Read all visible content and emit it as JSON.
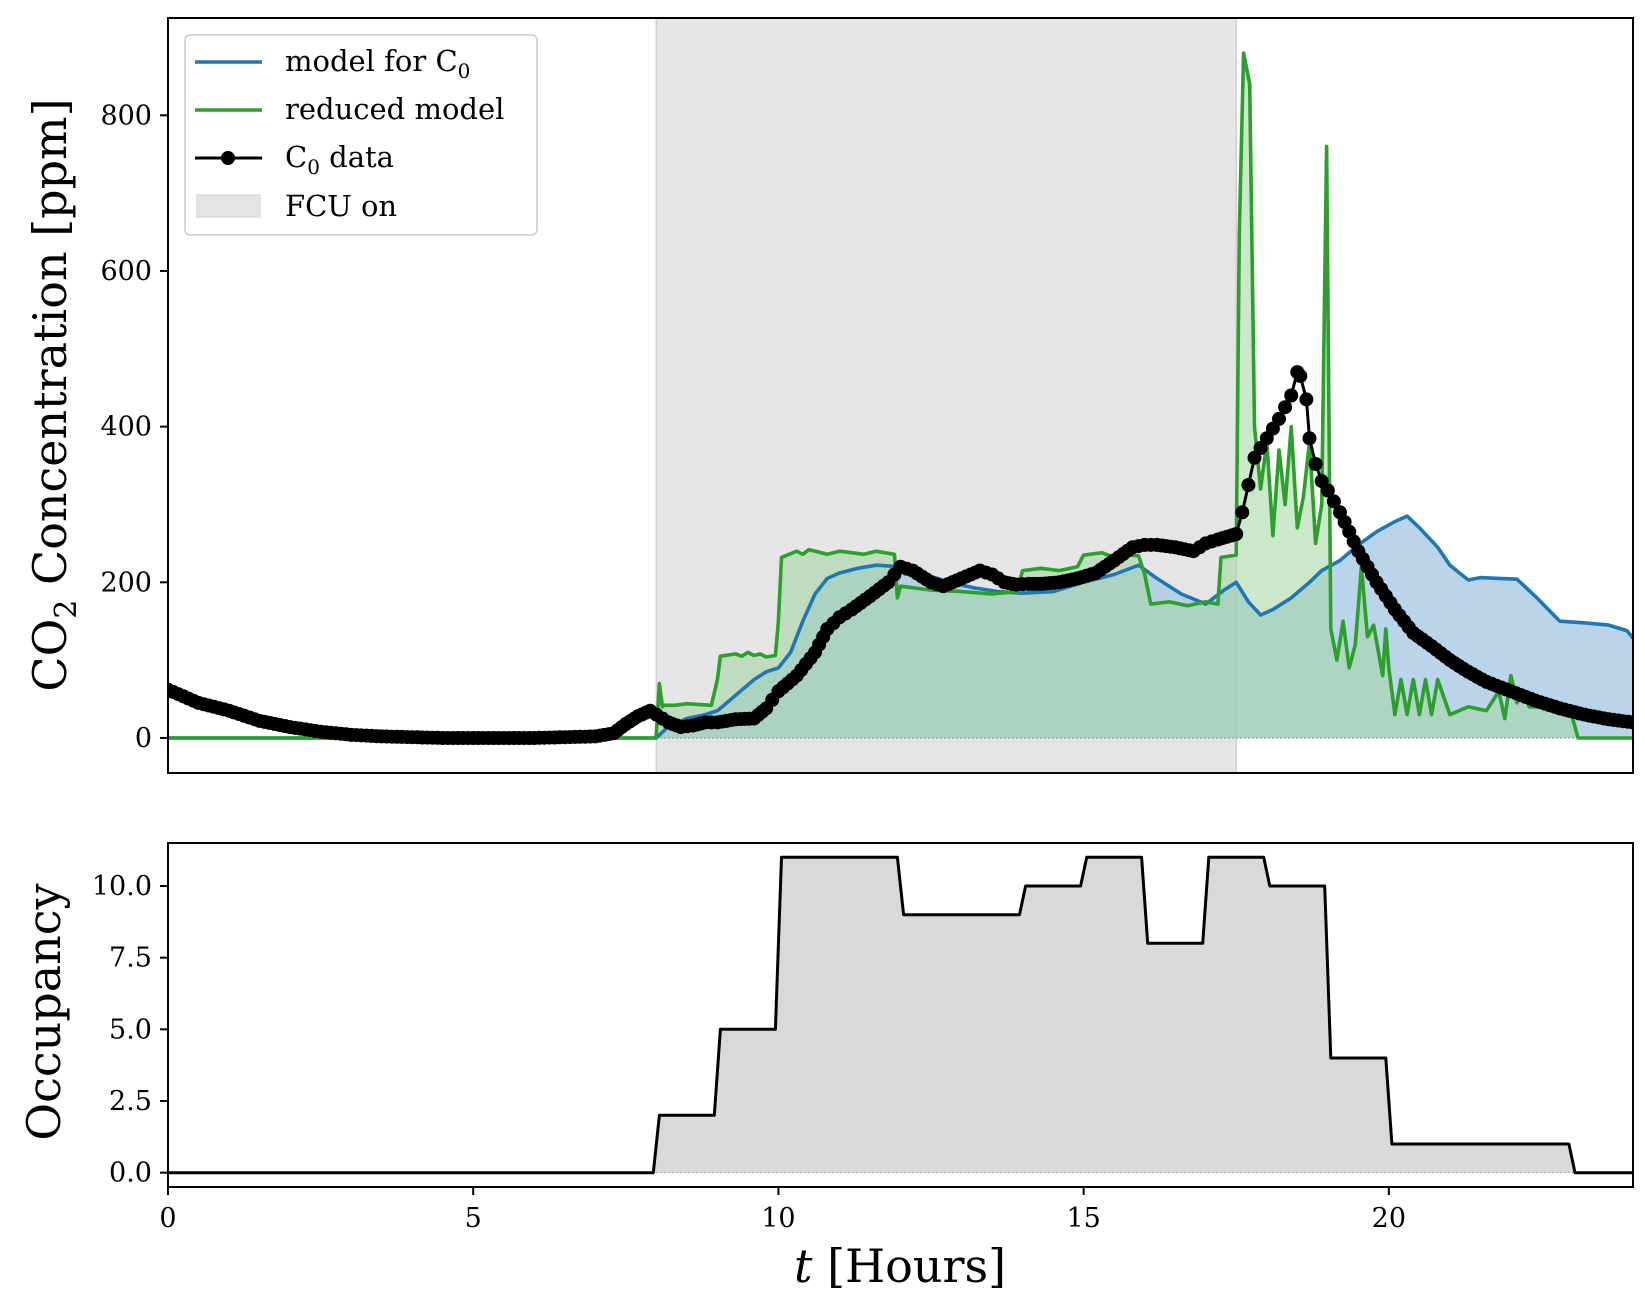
{
  "chart_data": [
    {
      "type": "line",
      "ylabel": "CO₂ Concentration [ppm]",
      "ylabel_parts": {
        "main": "CO",
        "sub": "2",
        "rest": " Concentration [ppm]"
      },
      "xlim": [
        0,
        24
      ],
      "ylim": [
        -45,
        925
      ],
      "yticks": [
        0,
        200,
        400,
        600,
        800
      ],
      "x_ticklabels_visible": false,
      "legend": {
        "placement": "upper-left",
        "entries": [
          {
            "key": "model",
            "label_parts": {
              "main": "model for C",
              "sub": "0",
              "rest": ""
            }
          },
          {
            "key": "reduced",
            "label_parts": {
              "main": "reduced model",
              "sub": "",
              "rest": ""
            }
          },
          {
            "key": "data",
            "label_parts": {
              "main": "C",
              "sub": "0",
              "rest": " data"
            }
          },
          {
            "key": "fcu",
            "label_parts": {
              "main": "FCU on",
              "sub": "",
              "rest": ""
            }
          }
        ]
      },
      "shaded_interval": {
        "name": "FCU on",
        "x_start": 8.0,
        "x_end": 17.5,
        "color": "#e5e5e5"
      },
      "series": [
        {
          "name": "model for C0",
          "color": "#1f77b4",
          "fill_color": "#aecde6",
          "x": [
            0,
            8.0,
            8.2,
            8.5,
            8.8,
            9.0,
            9.3,
            9.6,
            9.8,
            10.0,
            10.2,
            10.4,
            10.6,
            10.8,
            11.0,
            11.3,
            11.6,
            12.0,
            12.4,
            12.8,
            13.2,
            13.6,
            14.0,
            14.5,
            15.0,
            15.5,
            15.9,
            16.2,
            16.6,
            17.0,
            17.3,
            17.5,
            17.7,
            17.9,
            18.1,
            18.4,
            18.7,
            18.9,
            19.2,
            19.5,
            19.8,
            20.1,
            20.3,
            20.5,
            20.8,
            21.0,
            21.3,
            21.5,
            21.8,
            22.1,
            22.4,
            22.8,
            23.2,
            23.6,
            23.9,
            24.0
          ],
          "y": [
            0,
            0,
            15,
            25,
            30,
            35,
            55,
            75,
            85,
            90,
            110,
            150,
            185,
            205,
            212,
            218,
            222,
            220,
            210,
            200,
            193,
            188,
            186,
            188,
            200,
            210,
            222,
            205,
            185,
            172,
            190,
            200,
            175,
            158,
            165,
            180,
            200,
            215,
            228,
            248,
            265,
            278,
            285,
            270,
            245,
            222,
            203,
            206,
            205,
            204,
            182,
            150,
            148,
            145,
            138,
            128
          ]
        },
        {
          "name": "reduced model",
          "color": "#2ca02c",
          "fill_color": "#a3d6a0",
          "x": [
            0,
            7.99,
            8.0,
            8.05,
            8.1,
            8.12,
            8.3,
            8.5,
            8.9,
            9.0,
            9.05,
            9.3,
            9.4,
            9.5,
            9.6,
            9.7,
            9.8,
            9.95,
            10.0,
            10.05,
            10.3,
            10.4,
            10.5,
            10.8,
            11.0,
            11.2,
            11.4,
            11.6,
            11.9,
            11.95,
            12.0,
            12.5,
            13.0,
            13.5,
            13.9,
            14.0,
            14.3,
            14.6,
            14.9,
            15.0,
            15.3,
            15.5,
            15.6,
            15.9,
            16.0,
            16.1,
            16.4,
            16.7,
            17.0,
            17.2,
            17.25,
            17.5,
            17.55,
            17.62,
            17.72,
            17.8,
            17.9,
            18.0,
            18.1,
            18.2,
            18.3,
            18.4,
            18.5,
            18.6,
            18.7,
            18.8,
            18.9,
            18.98,
            19.05,
            19.15,
            19.25,
            19.35,
            19.45,
            19.55,
            19.65,
            19.75,
            19.9,
            19.95,
            20.0,
            20.1,
            20.2,
            20.3,
            20.4,
            20.5,
            20.6,
            20.7,
            20.8,
            21.0,
            21.3,
            21.6,
            21.8,
            21.9,
            22.0,
            22.1,
            22.2,
            22.3,
            22.5,
            22.7,
            22.9,
            23.0,
            23.1,
            24.0
          ],
          "y": [
            0,
            0,
            5,
            70,
            40,
            42,
            42,
            44,
            42,
            75,
            105,
            108,
            105,
            110,
            106,
            108,
            104,
            106,
            150,
            232,
            240,
            236,
            242,
            236,
            240,
            238,
            236,
            240,
            236,
            180,
            195,
            190,
            188,
            185,
            188,
            215,
            218,
            215,
            220,
            235,
            238,
            232,
            236,
            234,
            210,
            172,
            175,
            170,
            175,
            172,
            232,
            235,
            650,
            880,
            840,
            400,
            320,
            380,
            260,
            370,
            300,
            400,
            270,
            310,
            380,
            250,
            300,
            760,
            140,
            100,
            150,
            90,
            120,
            220,
            130,
            145,
            80,
            140,
            90,
            30,
            75,
            30,
            75,
            30,
            75,
            30,
            75,
            30,
            40,
            35,
            60,
            25,
            80,
            45,
            60,
            40,
            40,
            35,
            40,
            28,
            0,
            0
          ]
        },
        {
          "name": "C0 data",
          "color": "#000000",
          "marker": "circle",
          "x": [
            0,
            0.5,
            1.0,
            1.5,
            2.0,
            2.5,
            3.0,
            3.5,
            4.0,
            4.5,
            5.0,
            5.5,
            6.0,
            6.5,
            7.0,
            7.3,
            7.5,
            7.7,
            7.9,
            8.0,
            8.2,
            8.4,
            8.6,
            8.8,
            9.0,
            9.3,
            9.6,
            9.8,
            10.0,
            10.3,
            10.6,
            10.8,
            11.0,
            11.2,
            11.5,
            11.8,
            12.0,
            12.2,
            12.5,
            12.7,
            13.0,
            13.3,
            13.5,
            13.7,
            13.9,
            14.1,
            14.3,
            14.6,
            14.9,
            15.2,
            15.5,
            15.8,
            16.0,
            16.2,
            16.5,
            16.8,
            17.0,
            17.2,
            17.5,
            17.6,
            17.8,
            18.0,
            18.2,
            18.4,
            18.5,
            18.55,
            18.65,
            18.7,
            18.8,
            18.9,
            19.0,
            19.2,
            19.5,
            19.8,
            20.1,
            20.4,
            20.7,
            21.0,
            21.3,
            21.6,
            22.0,
            22.4,
            22.8,
            23.2,
            23.6,
            24.0
          ],
          "y": [
            62,
            45,
            35,
            22,
            14,
            8,
            4,
            2,
            1,
            0,
            0,
            0,
            0,
            1,
            2,
            6,
            18,
            28,
            35,
            30,
            20,
            14,
            16,
            20,
            20,
            24,
            25,
            38,
            60,
            80,
            110,
            140,
            155,
            165,
            182,
            200,
            220,
            215,
            200,
            195,
            205,
            215,
            210,
            200,
            197,
            198,
            198,
            200,
            205,
            212,
            228,
            245,
            248,
            248,
            245,
            240,
            250,
            255,
            262,
            290,
            360,
            385,
            410,
            440,
            470,
            465,
            435,
            385,
            352,
            330,
            318,
            290,
            240,
            200,
            165,
            135,
            118,
            100,
            85,
            72,
            60,
            48,
            38,
            30,
            24,
            20
          ]
        }
      ]
    },
    {
      "type": "area",
      "ylabel": "Occupancy",
      "xlabel_parts": {
        "main": "t",
        "rest": " [Hours]"
      },
      "xlim": [
        0,
        24
      ],
      "ylim": [
        -0.5,
        11.5
      ],
      "xticks": [
        0,
        5,
        10,
        15,
        20
      ],
      "xticklabels": [
        "0",
        "5",
        "10",
        "15",
        "20"
      ],
      "yticks": [
        0,
        2.5,
        5,
        7.5,
        10
      ],
      "yticklabels": [
        "0.0",
        "2.5",
        "5.0",
        "7.5",
        "10.0"
      ],
      "series": [
        {
          "name": "Occupancy",
          "color": "#000000",
          "fill_color": "#d9d9d9",
          "x": [
            0,
            7.95,
            8.05,
            8.95,
            9.05,
            9.95,
            10.05,
            11.95,
            12.05,
            13.95,
            14.05,
            14.95,
            15.05,
            15.95,
            16.05,
            16.95,
            17.05,
            17.95,
            18.05,
            18.95,
            19.05,
            19.95,
            20.05,
            22.95,
            23.05,
            24.0
          ],
          "y": [
            0,
            0,
            2,
            2,
            5,
            5,
            11,
            11,
            9,
            9,
            10,
            10,
            11,
            11,
            8,
            8,
            11,
            11,
            10,
            10,
            4,
            4,
            1,
            1,
            0,
            0
          ]
        }
      ]
    }
  ]
}
